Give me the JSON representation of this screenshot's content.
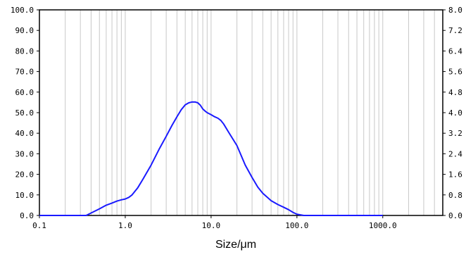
{
  "chart_data": {
    "type": "line",
    "xlabel": "Size/μm",
    "x_scale": "log",
    "xlim": [
      0.1,
      5000
    ],
    "ylim_left": [
      0,
      100
    ],
    "ylim_right": [
      0,
      8
    ],
    "grid": true,
    "x_ticks": [
      0.1,
      1,
      10,
      100,
      1000
    ],
    "x_tick_labels": [
      "0.1",
      "1.0",
      "10.0",
      "100.0",
      "1000.0"
    ],
    "y_left_ticks": [
      0,
      10,
      20,
      30,
      40,
      50,
      60,
      70,
      80,
      90,
      100
    ],
    "y_left_tick_labels": [
      "0.0",
      "10.0",
      "20.0",
      "30.0",
      "40.0",
      "50.0",
      "60.0",
      "70.0",
      "80.0",
      "90.0",
      "100.0"
    ],
    "y_right_ticks": [
      0,
      0.8,
      1.6,
      2.4,
      3.2,
      4.0,
      4.8,
      5.6,
      6.4,
      7.2,
      8.0
    ],
    "y_right_tick_labels": [
      "0.0",
      "0.8",
      "1.6",
      "2.4",
      "3.2",
      "4.0",
      "4.8",
      "5.6",
      "6.4",
      "7.2",
      "8.0"
    ],
    "colors": {
      "line": "#1a1aff",
      "grid": "#c8c8c8",
      "axes": "#000000"
    },
    "series": [
      {
        "axis": "left",
        "x": [
          0.1,
          0.3,
          0.35,
          0.4,
          0.5,
          0.6,
          0.7,
          0.8,
          0.9,
          1.0,
          1.1,
          1.2,
          1.4,
          1.6,
          2.0,
          2.5,
          3.0,
          3.5,
          4.0,
          4.5,
          5.0,
          5.5,
          6.0,
          6.5,
          7.0,
          7.5,
          8.0,
          8.5,
          9.0,
          10,
          11,
          12,
          13,
          14,
          16,
          20,
          25,
          30,
          35,
          40,
          50,
          60,
          70,
          80,
          90,
          100,
          120,
          1000
        ],
        "y": [
          0,
          0,
          0,
          1.2,
          3.2,
          5.0,
          6.0,
          7.0,
          7.6,
          8.0,
          8.8,
          10.0,
          13.5,
          17.5,
          24.5,
          32.5,
          38.5,
          43.8,
          48.0,
          51.5,
          53.8,
          54.8,
          55.2,
          55.2,
          54.8,
          53.6,
          51.8,
          50.8,
          50.0,
          49.0,
          48.0,
          47.3,
          46.2,
          44.5,
          40.5,
          34.0,
          24.5,
          18.5,
          13.8,
          10.8,
          7.2,
          5.3,
          4.0,
          2.8,
          1.5,
          0.6,
          0,
          0
        ]
      }
    ]
  }
}
